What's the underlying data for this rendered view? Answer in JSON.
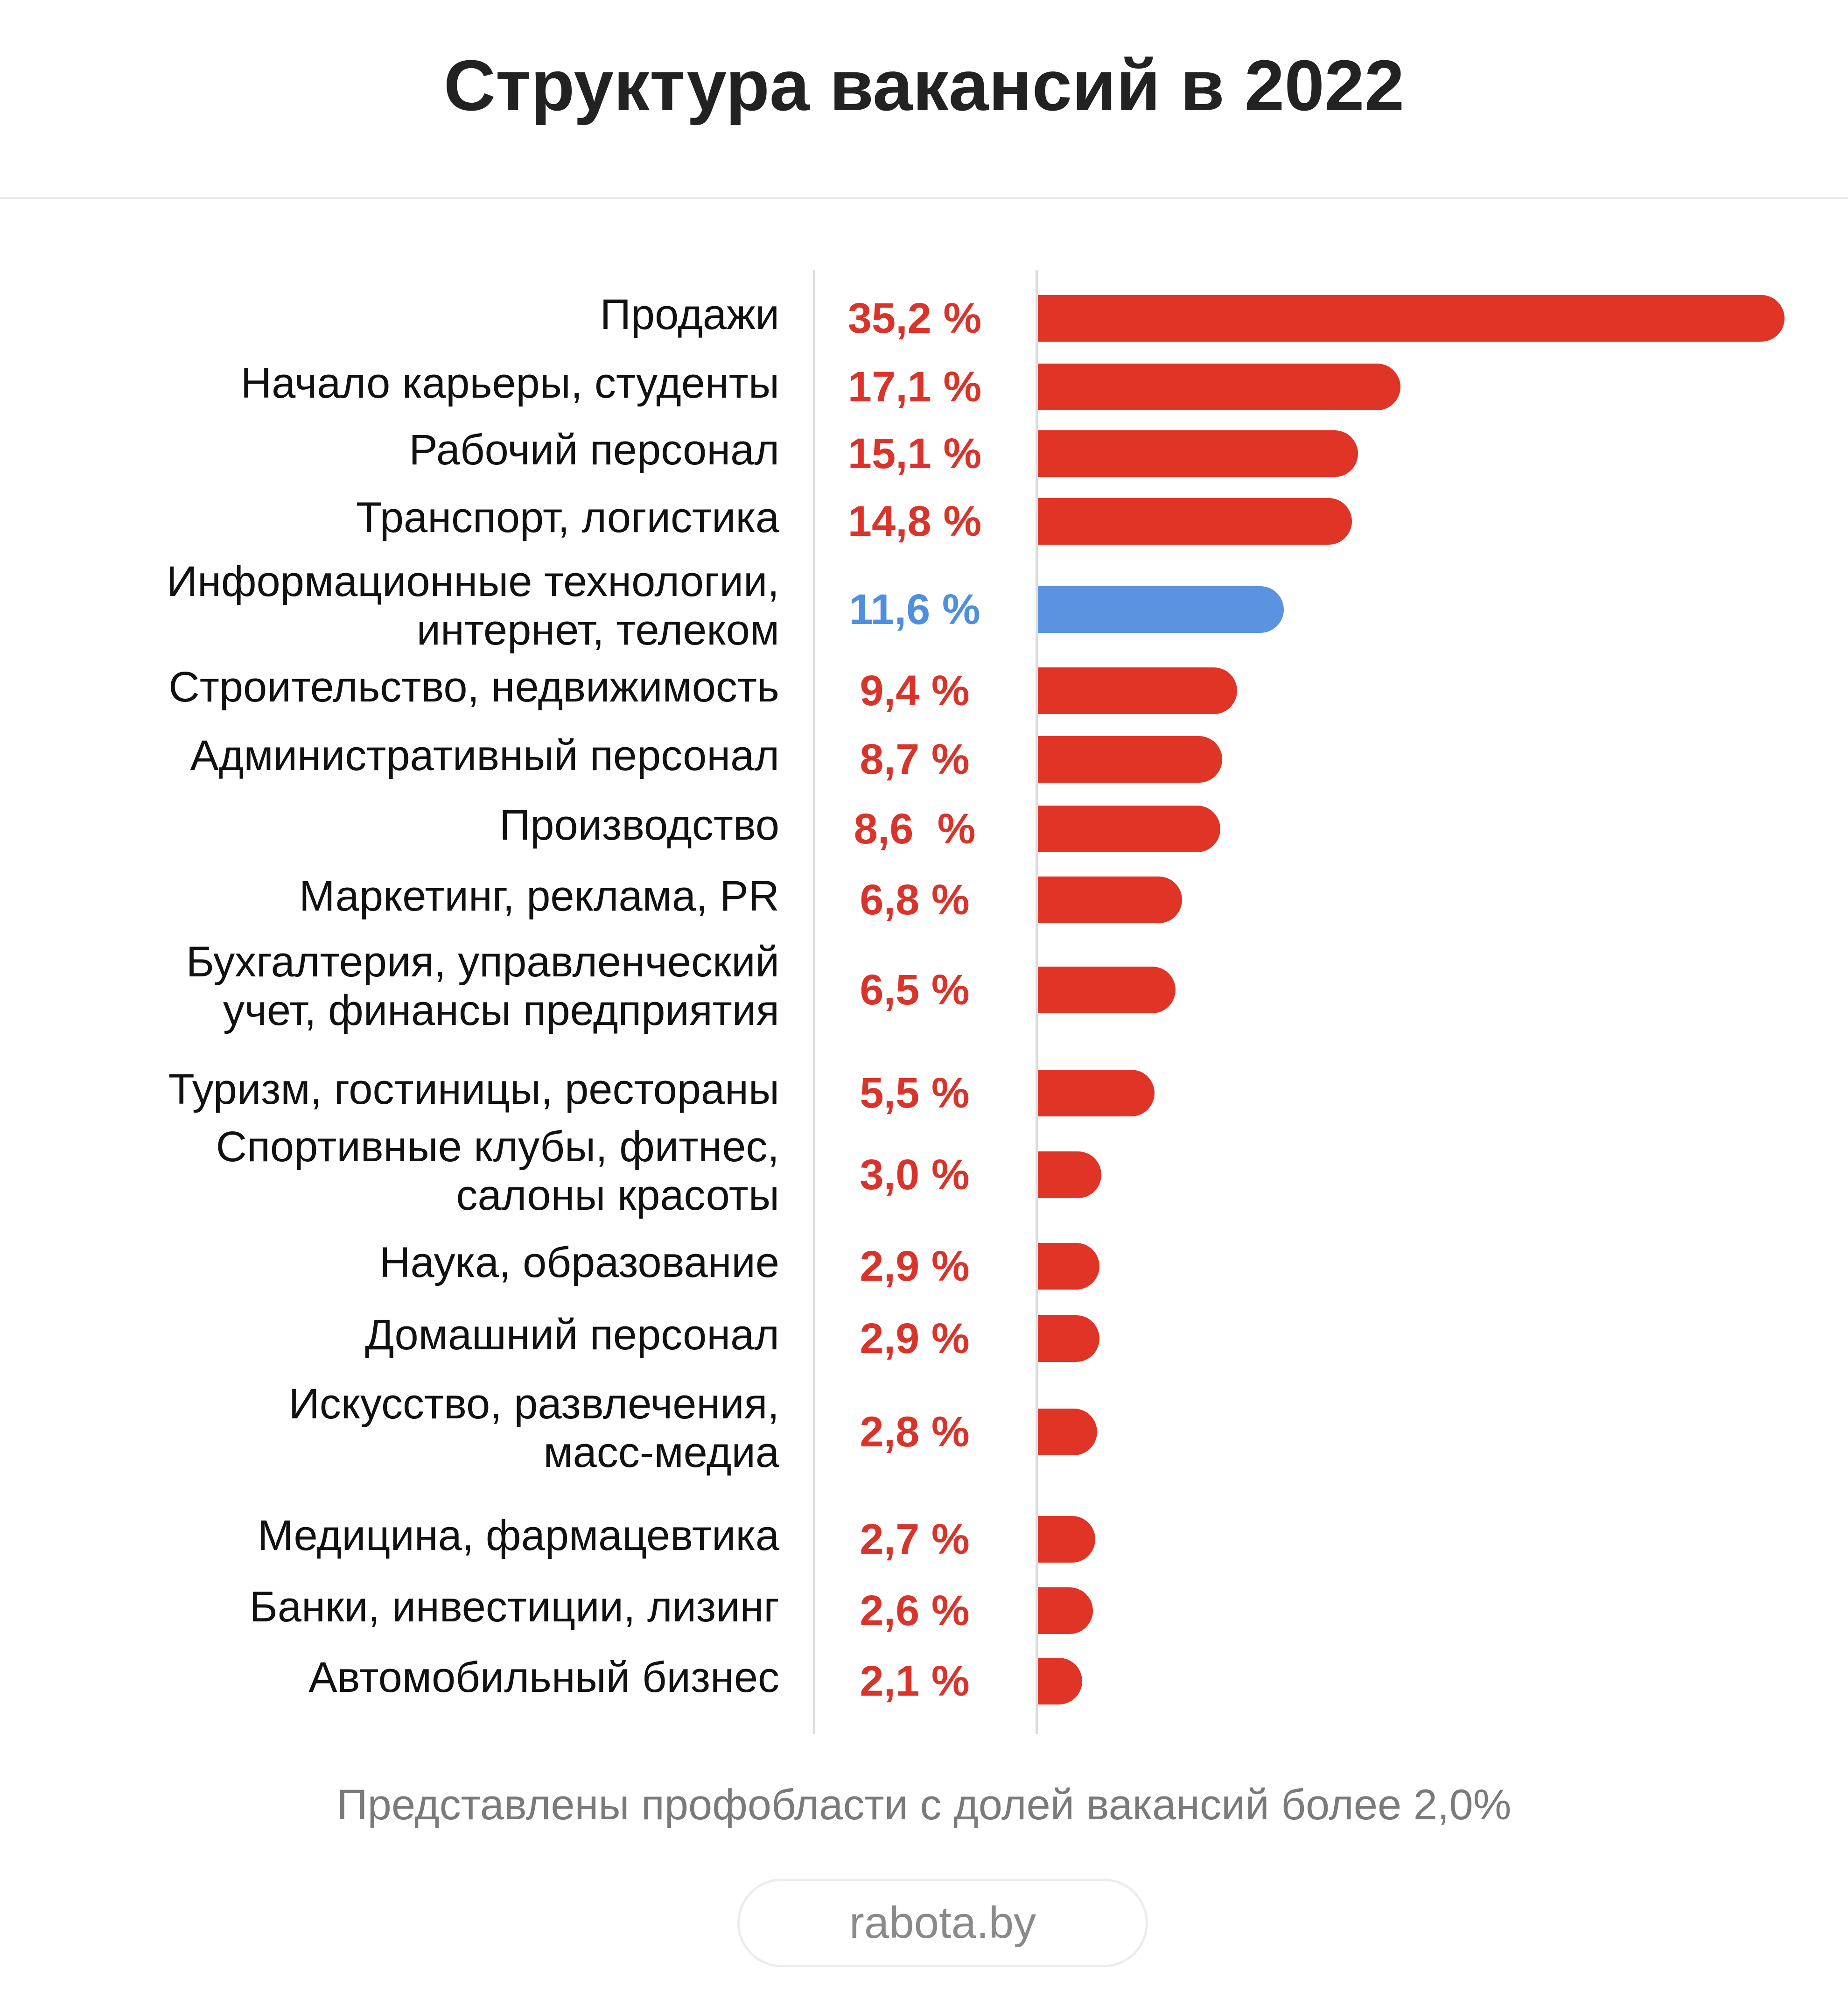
{
  "chart_data": {
    "type": "bar",
    "orientation": "horizontal",
    "title": "Структура вакансий в 2022",
    "categories": [
      "Продажи",
      "Начало карьеры, студенты",
      "Рабочий персонал",
      "Транспорт, логистика",
      "Информационные технологии, интернет, телеком",
      "Строительство, недвижимость",
      "Административный персонал",
      "Производство",
      "Маркетинг, реклама, PR",
      "Бухгалтерия, управленческий учет, финансы предприятия",
      "Туризм, гостиницы, рестораны",
      "Спортивные клубы, фитнес, салоны красоты",
      "Наука, образование",
      "Домашний персонал",
      "Искусство, развлечения, масс-медиа",
      "Медицина, фармацевтика",
      "Банки, инвестиции, лизинг",
      "Автомобильный бизнес"
    ],
    "category_lines": [
      [
        "Продажи"
      ],
      [
        "Начало карьеры, студенты"
      ],
      [
        "Рабочий персонал"
      ],
      [
        "Транспорт, логистика"
      ],
      [
        "Информационные технологии,",
        "интернет, телеком"
      ],
      [
        "Строительство, недвижимость"
      ],
      [
        "Административный персонал"
      ],
      [
        "Производство"
      ],
      [
        "Маркетинг, реклама, PR"
      ],
      [
        "Бухгалтерия, управленческий",
        "учет, финансы предприятия"
      ],
      [
        "Туризм, гостиницы, рестораны"
      ],
      [
        "Спортивные клубы, фитнес,",
        "салоны красоты"
      ],
      [
        "Наука, образование"
      ],
      [
        "Домашний персонал"
      ],
      [
        "Искусство, развлечения,",
        "масс-медиа"
      ],
      [
        "Медицина, фармацевтика"
      ],
      [
        "Банки, инвестиции, лизинг"
      ],
      [
        "Автомобильный бизнес"
      ]
    ],
    "values": [
      35.2,
      17.1,
      15.1,
      14.8,
      11.6,
      9.4,
      8.7,
      8.6,
      6.8,
      6.5,
      5.5,
      3.0,
      2.9,
      2.9,
      2.8,
      2.7,
      2.6,
      2.1
    ],
    "value_labels": [
      "35,2 %",
      "17,1 %",
      "15,1 %",
      "14,8 %",
      "11,6 %",
      "9,4 %",
      "8,7 %",
      "8,6  %",
      "6,8 %",
      "6,5 %",
      "5,5 %",
      "3,0 %",
      "2,9 %",
      "2,9 %",
      "2,8 %",
      "2,7 %",
      "2,6 %",
      "2,1 %"
    ],
    "highlight_index": 4,
    "colors": {
      "bar": "#e03426",
      "highlight": "#5b93e0",
      "label": "#d9342b",
      "highlight_label": "#4f8fe0"
    },
    "xlim": [
      0,
      35.2
    ],
    "grid": false,
    "legend": "none"
  },
  "note": "Представлены профобласти с долей вакансий более 2,0%",
  "source": "rabota.by"
}
